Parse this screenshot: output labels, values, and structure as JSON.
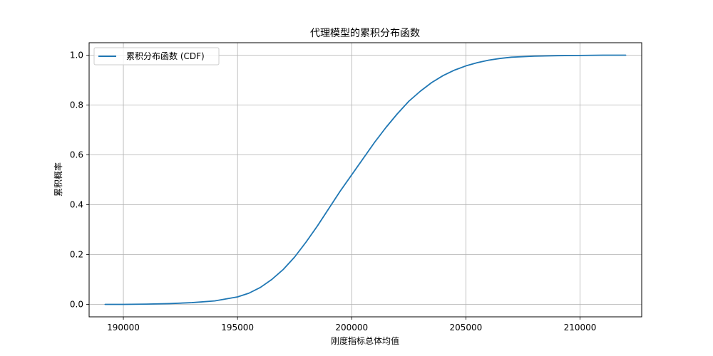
{
  "chart_data": {
    "type": "line",
    "title": "代理模型的累积分布函数",
    "xlabel": "刚度指标总体均值",
    "ylabel": "累积概率",
    "xlim": [
      188500,
      212700
    ],
    "ylim": [
      -0.05,
      1.05
    ],
    "xticks": [
      190000,
      195000,
      200000,
      205000,
      210000
    ],
    "yticks": [
      0.0,
      0.2,
      0.4,
      0.6,
      0.8,
      1.0
    ],
    "xtick_labels": [
      "190000",
      "195000",
      "200000",
      "205000",
      "210000"
    ],
    "ytick_labels": [
      "0.0",
      "0.2",
      "0.4",
      "0.6",
      "0.8",
      "1.0"
    ],
    "grid": true,
    "legend_position": "top-left",
    "series": [
      {
        "name": "累积分布函数 (CDF)",
        "color": "#1f77b4",
        "x": [
          189200,
          190000,
          191000,
          192000,
          193000,
          194000,
          195000,
          195500,
          196000,
          196500,
          197000,
          197500,
          198000,
          198500,
          199000,
          199500,
          200000,
          200500,
          201000,
          201500,
          202000,
          202500,
          203000,
          203500,
          204000,
          204500,
          205000,
          205500,
          206000,
          206500,
          207000,
          208000,
          209000,
          210000,
          211000,
          212000
        ],
        "y": [
          0.0,
          0.0,
          0.001,
          0.003,
          0.007,
          0.014,
          0.03,
          0.045,
          0.068,
          0.1,
          0.14,
          0.19,
          0.25,
          0.315,
          0.385,
          0.455,
          0.52,
          0.585,
          0.65,
          0.71,
          0.765,
          0.815,
          0.855,
          0.89,
          0.918,
          0.94,
          0.957,
          0.97,
          0.98,
          0.987,
          0.992,
          0.996,
          0.998,
          0.999,
          1.0,
          1.0
        ]
      }
    ]
  }
}
